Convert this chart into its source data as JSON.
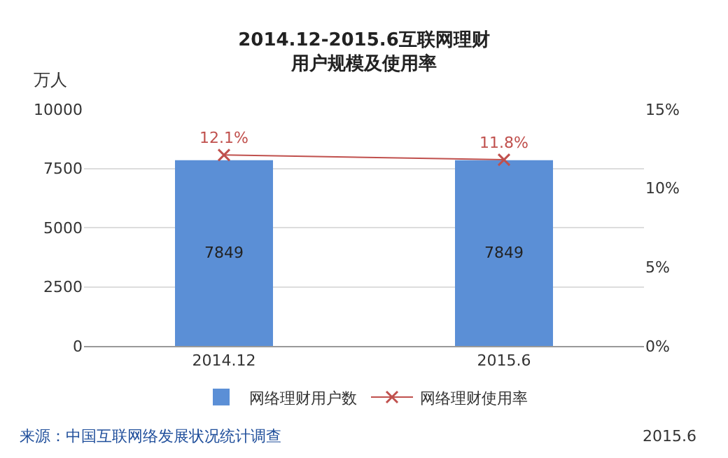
{
  "chart_data": {
    "type": "bar",
    "title": "2014.12-2015.6互联网理财",
    "subtitle": "用户规模及使用率",
    "ylabel": "万人",
    "categories": [
      "2014.12",
      "2015.6"
    ],
    "series": [
      {
        "name": "网络理财用户数",
        "color": "#5b8fd6",
        "values": [
          7849,
          7849
        ],
        "value_labels": [
          "7849",
          "7849"
        ]
      },
      {
        "name": "网络理财使用率",
        "type": "line",
        "axis": "y2",
        "color": "#c0504d",
        "marker": "cross",
        "values": [
          12.1,
          11.8
        ],
        "value_labels": [
          "12.1%",
          "11.8%"
        ]
      }
    ],
    "ylim": [
      0,
      10000
    ],
    "yticks": [
      0,
      2500,
      5000,
      7500,
      10000
    ],
    "y2lim": [
      0,
      15
    ],
    "y2ticks": [
      {
        "value": 0,
        "label": "0%"
      },
      {
        "value": 5,
        "label": "5%"
      },
      {
        "value": 10,
        "label": "10%"
      },
      {
        "value": 15,
        "label": "15%"
      }
    ],
    "grid": "y",
    "legend": "bottom",
    "annotations": [
      "来源：中国互联网络发展状况统计调查",
      "2015.6"
    ]
  }
}
